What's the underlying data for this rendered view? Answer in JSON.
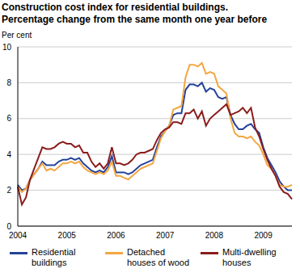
{
  "chart_data": {
    "type": "line",
    "title": "Construction cost index for residential buildings.",
    "subtitle": "Percentage change from the same month one year before",
    "y_label": "Per cent",
    "categories": [
      "2004",
      null,
      null,
      null,
      null,
      null,
      null,
      null,
      null,
      null,
      null,
      null,
      "2005",
      null,
      null,
      null,
      null,
      null,
      null,
      null,
      null,
      null,
      null,
      null,
      "2006",
      null,
      null,
      null,
      null,
      null,
      null,
      null,
      null,
      null,
      null,
      null,
      "2007",
      null,
      null,
      null,
      null,
      null,
      null,
      null,
      null,
      null,
      null,
      null,
      "2008",
      null,
      null,
      null,
      null,
      null,
      null,
      null,
      null,
      null,
      null,
      null,
      "2009",
      null,
      null,
      null,
      null,
      null,
      null,
      null
    ],
    "ylim": [
      0,
      10
    ],
    "yticks": [
      0,
      2,
      4,
      6,
      8,
      10
    ],
    "grid": true,
    "legend": "bottom",
    "series": [
      {
        "name": "Residential buildings",
        "color": "#24429b",
        "values": [
          2.3,
          2.0,
          2.1,
          2.6,
          2.9,
          3.2,
          3.6,
          3.4,
          3.4,
          3.4,
          3.6,
          3.7,
          3.7,
          3.8,
          3.7,
          3.8,
          3.5,
          3.3,
          3.1,
          3.0,
          3.1,
          3.0,
          3.3,
          3.9,
          3.0,
          3.0,
          3.0,
          2.9,
          3.0,
          3.2,
          3.4,
          3.5,
          3.6,
          3.7,
          4.4,
          5.0,
          5.3,
          5.6,
          6.2,
          6.3,
          6.3,
          7.6,
          7.9,
          7.9,
          7.8,
          8.0,
          7.5,
          7.7,
          7.6,
          7.2,
          7.1,
          7.2,
          6.2,
          5.7,
          5.4,
          5.4,
          5.6,
          5.7,
          5.4,
          5.2,
          4.4,
          3.8,
          3.4,
          3.0,
          2.5,
          2.2,
          2.0,
          2.0
        ]
      },
      {
        "name": "Detached houses of wood",
        "color": "#f4a640",
        "values": [
          2.2,
          1.9,
          2.1,
          2.6,
          2.9,
          3.2,
          3.5,
          3.1,
          3.2,
          3.1,
          3.3,
          3.5,
          3.5,
          3.6,
          3.5,
          3.6,
          3.3,
          3.1,
          3.0,
          2.9,
          3.0,
          2.9,
          3.1,
          3.6,
          2.8,
          2.8,
          2.7,
          2.6,
          2.8,
          3.0,
          3.2,
          3.3,
          3.4,
          3.5,
          4.2,
          4.9,
          5.3,
          5.6,
          6.5,
          6.6,
          6.7,
          8.3,
          9.0,
          9.0,
          8.9,
          9.1,
          8.5,
          8.6,
          8.5,
          7.8,
          7.6,
          7.4,
          6.0,
          5.2,
          5.0,
          5.0,
          4.9,
          5.0,
          4.7,
          4.5,
          4.0,
          3.4,
          3.2,
          2.8,
          2.3,
          2.2,
          2.2,
          2.3
        ]
      },
      {
        "name": "Multi-dwelling houses",
        "color": "#8b1c1c",
        "values": [
          2.2,
          1.2,
          1.6,
          2.6,
          3.2,
          3.8,
          4.4,
          4.3,
          4.3,
          4.4,
          4.6,
          4.7,
          4.6,
          4.6,
          4.4,
          4.5,
          4.1,
          4.1,
          3.6,
          3.3,
          3.5,
          3.2,
          3.5,
          4.4,
          3.5,
          3.5,
          3.4,
          3.5,
          3.7,
          4.0,
          4.1,
          4.1,
          4.2,
          4.3,
          4.8,
          5.2,
          5.4,
          5.5,
          5.8,
          5.8,
          5.7,
          6.3,
          6.3,
          6.5,
          6.0,
          6.4,
          5.6,
          6.0,
          6.2,
          6.4,
          6.6,
          6.8,
          6.2,
          6.3,
          6.4,
          6.6,
          6.3,
          6.6,
          5.5,
          5.0,
          4.3,
          3.7,
          3.2,
          2.8,
          2.2,
          1.9,
          1.8,
          1.5
        ]
      }
    ]
  }
}
